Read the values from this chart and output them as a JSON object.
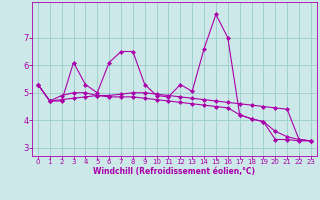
{
  "xlabel": "Windchill (Refroidissement éolien,°C)",
  "background_color": "#cce8e8",
  "line_color": "#aa00aa",
  "grid_color": "#99cccc",
  "xlim": [
    -0.5,
    23.5
  ],
  "ylim": [
    2.7,
    8.3
  ],
  "yticks": [
    3,
    4,
    5,
    6,
    7
  ],
  "xticks": [
    0,
    1,
    2,
    3,
    4,
    5,
    6,
    7,
    8,
    9,
    10,
    11,
    12,
    13,
    14,
    15,
    16,
    17,
    18,
    19,
    20,
    21,
    22,
    23
  ],
  "series": [
    [
      5.3,
      4.7,
      4.7,
      6.1,
      5.3,
      5.0,
      6.1,
      6.5,
      6.5,
      5.3,
      4.9,
      4.85,
      5.3,
      5.05,
      6.6,
      7.85,
      7.0,
      4.2,
      4.05,
      3.95,
      3.3,
      3.3,
      3.25,
      3.25
    ],
    [
      5.3,
      4.7,
      4.9,
      5.0,
      5.0,
      4.9,
      4.85,
      4.85,
      4.85,
      4.8,
      4.75,
      4.7,
      4.65,
      4.6,
      4.55,
      4.5,
      4.45,
      4.2,
      4.05,
      3.95,
      3.6,
      3.4,
      3.3,
      3.25
    ],
    [
      5.3,
      4.7,
      4.75,
      4.8,
      4.85,
      4.9,
      4.9,
      4.95,
      5.0,
      5.0,
      4.95,
      4.9,
      4.85,
      4.8,
      4.75,
      4.7,
      4.65,
      4.6,
      4.55,
      4.5,
      4.45,
      4.4,
      3.3,
      3.25
    ]
  ],
  "marker": "D",
  "markersize": 2.0,
  "linewidth": 0.8,
  "xlabel_fontsize": 5.5,
  "tick_fontsize_x": 5.0,
  "tick_fontsize_y": 6.0
}
